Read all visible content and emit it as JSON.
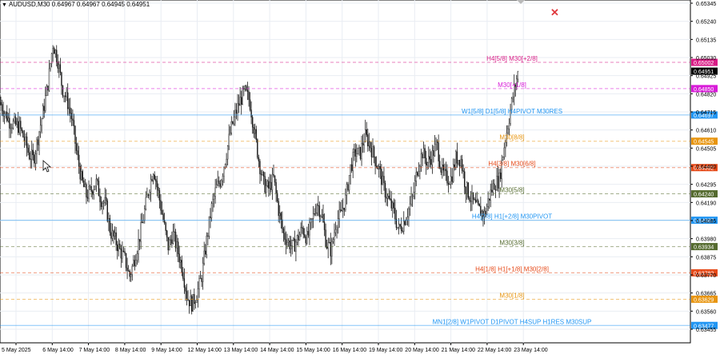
{
  "window": {
    "symbol_header": "AUDUSD,M30",
    "ohlc": [
      "0.64967",
      "0.64967",
      "0.64945",
      "0.64951"
    ],
    "close_icon": "close-x-icon",
    "menu_icon": "triangle-down-icon"
  },
  "colors": {
    "background": "#ffffff",
    "candle": "#1a1a1a",
    "grid": "#e9edf3",
    "price_now_bg": "#000000",
    "close_x": "#e0393e"
  },
  "chart_data": {
    "type": "candlestick",
    "symbol": "AUDUSD",
    "timeframe": "M30",
    "ylim": [
      0.6336,
      0.6537
    ],
    "y_ticks": [
      "0.65345",
      "0.65240",
      "0.65135",
      "0.65030",
      "0.64925",
      "0.64820",
      "0.64715",
      "0.64610",
      "0.64505",
      "0.64400",
      "0.64295",
      "0.64190",
      "0.64085",
      "0.63980",
      "0.63875",
      "0.63770",
      "0.63665",
      "0.63560",
      "0.63455"
    ],
    "x_ticks": [
      "5 May 2025",
      "6 May 14:00",
      "7 May 14:00",
      "8 May 14:00",
      "9 May 14:00",
      "12 May 14:00",
      "13 May 14:00",
      "14 May 14:00",
      "15 May 14:00",
      "16 May 14:00",
      "19 May 14:00",
      "20 May 14:00",
      "21 May 14:00",
      "22 May 14:00",
      "23 May 14:00"
    ],
    "current_price": "0.64951",
    "close_path": [
      [
        0,
        0.6477
      ],
      [
        6,
        0.6471
      ],
      [
        12,
        0.6466
      ],
      [
        18,
        0.6464
      ],
      [
        24,
        0.6463
      ],
      [
        30,
        0.6456
      ],
      [
        36,
        0.6447
      ],
      [
        42,
        0.6444
      ],
      [
        48,
        0.6458
      ],
      [
        54,
        0.6472
      ],
      [
        60,
        0.6488
      ],
      [
        66,
        0.6511
      ],
      [
        72,
        0.6502
      ],
      [
        78,
        0.6485
      ],
      [
        84,
        0.6478
      ],
      [
        90,
        0.6467
      ],
      [
        96,
        0.6447
      ],
      [
        102,
        0.6432
      ],
      [
        108,
        0.6423
      ],
      [
        114,
        0.6426
      ],
      [
        120,
        0.6431
      ],
      [
        126,
        0.6421
      ],
      [
        132,
        0.6418
      ],
      [
        138,
        0.6402
      ],
      [
        144,
        0.6397
      ],
      [
        150,
        0.6391
      ],
      [
        156,
        0.6386
      ],
      [
        162,
        0.6376
      ],
      [
        168,
        0.6386
      ],
      [
        174,
        0.6398
      ],
      [
        180,
        0.6412
      ],
      [
        186,
        0.6427
      ],
      [
        192,
        0.6439
      ],
      [
        198,
        0.6424
      ],
      [
        204,
        0.6409
      ],
      [
        210,
        0.6393
      ],
      [
        216,
        0.6401
      ],
      [
        222,
        0.6391
      ],
      [
        228,
        0.6381
      ],
      [
        234,
        0.6364
      ],
      [
        240,
        0.636
      ],
      [
        246,
        0.6366
      ],
      [
        252,
        0.6376
      ],
      [
        258,
        0.6396
      ],
      [
        264,
        0.6415
      ],
      [
        270,
        0.6427
      ],
      [
        276,
        0.6432
      ],
      [
        282,
        0.6445
      ],
      [
        288,
        0.646
      ],
      [
        294,
        0.647
      ],
      [
        300,
        0.6478
      ],
      [
        306,
        0.6483
      ],
      [
        312,
        0.6478
      ],
      [
        318,
        0.646
      ],
      [
        324,
        0.6442
      ],
      [
        330,
        0.6429
      ],
      [
        336,
        0.6427
      ],
      [
        342,
        0.6433
      ],
      [
        348,
        0.6415
      ],
      [
        354,
        0.6401
      ],
      [
        360,
        0.6396
      ],
      [
        366,
        0.6393
      ],
      [
        372,
        0.6398
      ],
      [
        378,
        0.6404
      ],
      [
        384,
        0.6398
      ],
      [
        390,
        0.6408
      ],
      [
        396,
        0.6419
      ],
      [
        402,
        0.6412
      ],
      [
        408,
        0.6395
      ],
      [
        414,
        0.6391
      ],
      [
        420,
        0.6408
      ],
      [
        426,
        0.6412
      ],
      [
        432,
        0.6421
      ],
      [
        438,
        0.6439
      ],
      [
        444,
        0.6448
      ],
      [
        450,
        0.6447
      ],
      [
        456,
        0.6458
      ],
      [
        462,
        0.6453
      ],
      [
        468,
        0.6445
      ],
      [
        474,
        0.6438
      ],
      [
        480,
        0.6427
      ],
      [
        486,
        0.642
      ],
      [
        492,
        0.6414
      ],
      [
        498,
        0.6403
      ],
      [
        504,
        0.6407
      ],
      [
        510,
        0.6414
      ],
      [
        516,
        0.6422
      ],
      [
        522,
        0.6439
      ],
      [
        528,
        0.6448
      ],
      [
        534,
        0.6442
      ],
      [
        540,
        0.6446
      ],
      [
        546,
        0.6453
      ],
      [
        552,
        0.6437
      ],
      [
        558,
        0.6433
      ],
      [
        564,
        0.6433
      ],
      [
        570,
        0.6445
      ],
      [
        576,
        0.6444
      ],
      [
        582,
        0.6428
      ],
      [
        588,
        0.6422
      ],
      [
        594,
        0.6417
      ],
      [
        600,
        0.6414
      ],
      [
        606,
        0.6412
      ],
      [
        612,
        0.6423
      ],
      [
        618,
        0.643
      ],
      [
        624,
        0.6432
      ],
      [
        630,
        0.6451
      ],
      [
        636,
        0.6467
      ],
      [
        642,
        0.6483
      ],
      [
        648,
        0.6495
      ]
    ],
    "levels": [
      {
        "price": 0.65002,
        "label": "H4[5/8] M30[+2/8]",
        "color": "#d81b85",
        "dash": "dashed",
        "price_label": "0.65002"
      },
      {
        "price": 0.6485,
        "label": "M30[+1/8]",
        "color": "#d81bd8",
        "dash": "dashed",
        "price_label": "0.64850"
      },
      {
        "price": 0.64697,
        "label": "W1[5/8] D1[5/8] H4PIVOT M30RES",
        "color": "#2196f3",
        "dash": "solid",
        "price_label": "0.64697"
      },
      {
        "price": 0.64545,
        "label": "M30[8/8]",
        "color": "#e8950f",
        "dash": "dashed",
        "price_label": "0.64545"
      },
      {
        "price": 0.64392,
        "label": "H4[3/8] M30[6/8]",
        "color": "#e64a19",
        "dash": "dashed",
        "price_label": "0.64392"
      },
      {
        "price": 0.6424,
        "label": "M30[5/8]",
        "color": "#556b2f",
        "dash": "dashed",
        "price_label": "0.64240"
      },
      {
        "price": 0.64087,
        "label": "H4[2/8] H1[+2/8] M30PIVOT",
        "color": "#2196f3",
        "dash": "solid",
        "price_label": "0.64087"
      },
      {
        "price": 0.63934,
        "label": "M30[3/8]",
        "color": "#556b2f",
        "dash": "dashed",
        "price_label": "0.63934"
      },
      {
        "price": 0.63782,
        "label": "H4[1/8] H1[+1/8] M30[2/8]",
        "color": "#e64a19",
        "dash": "dashed",
        "price_label": "0.63782"
      },
      {
        "price": 0.63629,
        "label": "M30[1/8]",
        "color": "#e8950f",
        "dash": "dashed",
        "price_label": "0.63629"
      },
      {
        "price": 0.63477,
        "label": "MN1[2/8] W1PIVOT D1PIVOT H4SUP H1RES M30SUP",
        "color": "#2196f3",
        "dash": "solid",
        "price_label": "0.63477"
      }
    ]
  }
}
